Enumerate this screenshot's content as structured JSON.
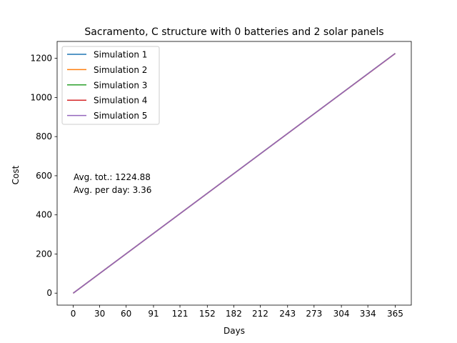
{
  "chart_data": {
    "type": "line",
    "title": "Sacramento, C structure with 0 batteries and 2 solar panels",
    "xlabel": "Days",
    "ylabel": "Cost",
    "xlim": [
      -18.25,
      383.25
    ],
    "ylim": [
      -61.25,
      1286.25
    ],
    "xticks": [
      0,
      30,
      60,
      91,
      121,
      152,
      182,
      212,
      243,
      273,
      304,
      334,
      365
    ],
    "yticks": [
      0,
      200,
      400,
      600,
      800,
      1000,
      1200
    ],
    "grid": false,
    "legend_position": "upper-left",
    "series": [
      {
        "name": "Simulation 1",
        "color": "#1f77b4",
        "x": [
          0,
          365
        ],
        "y": [
          0,
          1224.9
        ]
      },
      {
        "name": "Simulation 2",
        "color": "#ff7f0e",
        "x": [
          0,
          365
        ],
        "y": [
          0,
          1224.8
        ]
      },
      {
        "name": "Simulation 3",
        "color": "#2ca02c",
        "x": [
          0,
          365
        ],
        "y": [
          0,
          1225.0
        ]
      },
      {
        "name": "Simulation 4",
        "color": "#d62728",
        "x": [
          0,
          365
        ],
        "y": [
          0,
          1224.7
        ]
      },
      {
        "name": "Simulation 5",
        "color": "#9467bd",
        "x": [
          0,
          365
        ],
        "y": [
          0,
          1224.88
        ]
      }
    ],
    "annotations": [
      "Avg. tot.: 1224.88",
      "Avg. per day: 3.36"
    ]
  }
}
